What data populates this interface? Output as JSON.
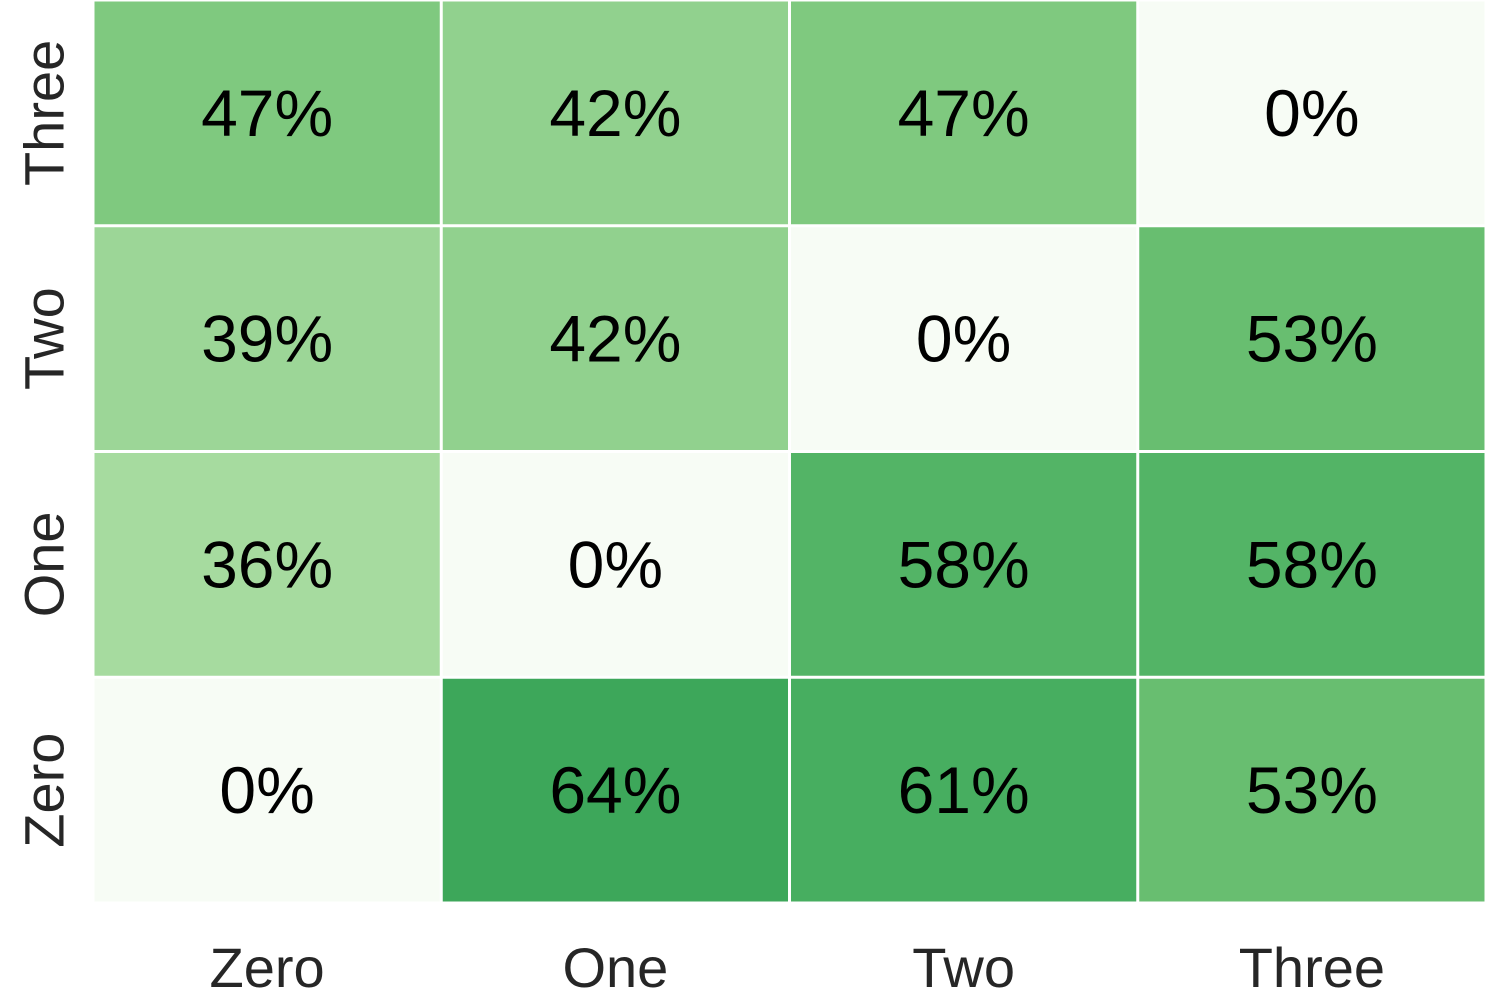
{
  "chart_data": {
    "type": "heatmap",
    "title": "",
    "xlabel": "",
    "ylabel": "",
    "x_categories": [
      "Zero",
      "One",
      "Two",
      "Three"
    ],
    "y_categories": [
      "Zero",
      "One",
      "Two",
      "Three"
    ],
    "y_order": "bottom-to-top",
    "value_format": "percent",
    "values": [
      [
        0,
        64,
        61,
        53
      ],
      [
        36,
        0,
        58,
        58
      ],
      [
        39,
        42,
        0,
        53
      ],
      [
        47,
        42,
        47,
        0
      ]
    ],
    "color_scale": {
      "name": "Greens",
      "vmin": 0,
      "vmax": 100,
      "low_color": "#f7fcf5",
      "high_color": "#00441b"
    },
    "grid": false,
    "colorbar": false,
    "legend": "none",
    "cell_border_color": "#ffffff"
  }
}
